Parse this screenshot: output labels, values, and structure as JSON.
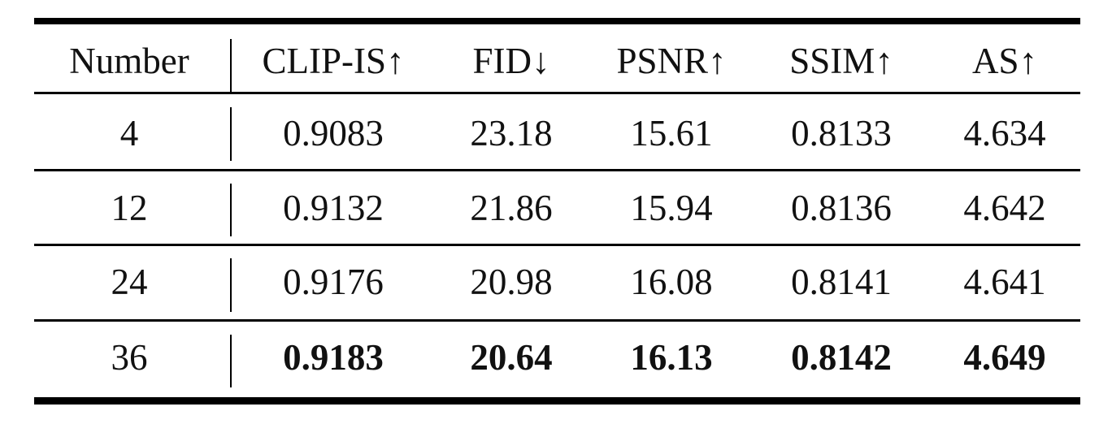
{
  "table": {
    "headers": [
      "Number",
      "CLIP-IS↑",
      "FID↓",
      "PSNR↑",
      "SSIM↑",
      "AS↑"
    ],
    "rows": [
      {
        "cells": [
          "4",
          "0.9083",
          "23.18",
          "15.61",
          "0.8133",
          "4.634"
        ],
        "bold": false
      },
      {
        "cells": [
          "12",
          "0.9132",
          "21.86",
          "15.94",
          "0.8136",
          "4.642"
        ],
        "bold": false
      },
      {
        "cells": [
          "24",
          "0.9176",
          "20.98",
          "16.08",
          "0.8141",
          "4.641"
        ],
        "bold": false
      },
      {
        "cells": [
          "36",
          "0.9183",
          "20.64",
          "16.13",
          "0.8142",
          "4.649"
        ],
        "bold": true
      }
    ]
  }
}
